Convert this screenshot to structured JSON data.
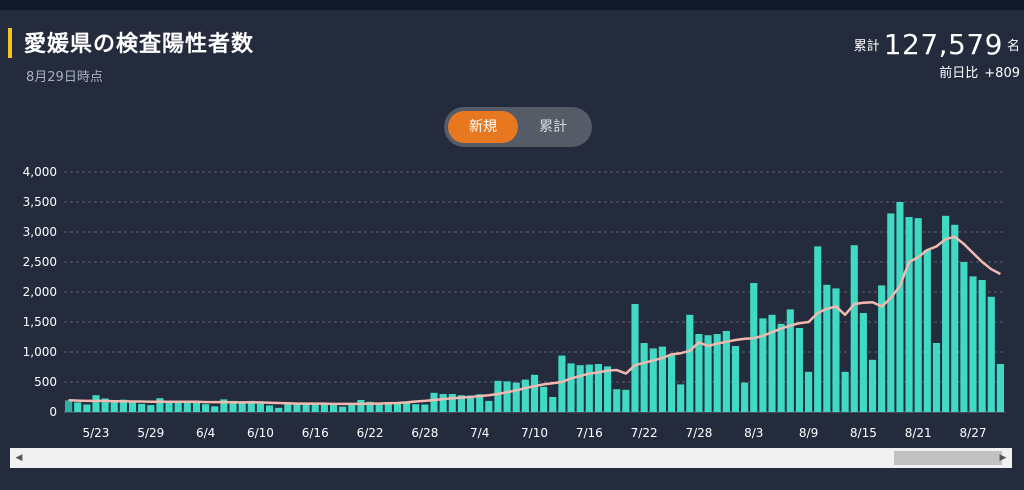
{
  "header": {
    "title": "愛媛県の検査陽性者数",
    "timestamp": "8月29日時点",
    "cumulative_label": "累計",
    "cumulative_value": "127,579",
    "cumulative_unit": "名",
    "diff_label": "前日比",
    "diff_value": "+809"
  },
  "toggle": {
    "new_label": "新規",
    "total_label": "累計"
  },
  "colors": {
    "bar": "#3fd9c4",
    "bar_first": "#2ab0a6",
    "line": "#f2b9b0",
    "accent": "#f4c51f",
    "active_button": "#e87820"
  },
  "chart_data": {
    "type": "bar",
    "title": "",
    "xlabel": "",
    "ylabel": "",
    "ylim": [
      0,
      4000
    ],
    "yticks": [
      "0",
      "500",
      "1,000",
      "1,500",
      "2,000",
      "2,500",
      "3,000",
      "3,500",
      "4,000"
    ],
    "x_tick_labels": [
      "5/23",
      "5/29",
      "6/4",
      "6/10",
      "6/16",
      "6/22",
      "6/28",
      "7/4",
      "7/10",
      "7/16",
      "7/22",
      "7/28",
      "8/3",
      "8/9",
      "8/15",
      "8/21",
      "8/27"
    ],
    "x_tick_indices": [
      3,
      9,
      15,
      21,
      27,
      33,
      39,
      45,
      51,
      57,
      63,
      69,
      75,
      81,
      87,
      93,
      99
    ],
    "grid": true,
    "series": [
      {
        "type": "bar",
        "values": [
          195,
          160,
          125,
          280,
          225,
          190,
          205,
          190,
          135,
          115,
          230,
          175,
          185,
          185,
          190,
          130,
          95,
          210,
          185,
          175,
          185,
          165,
          110,
          70,
          150,
          150,
          135,
          145,
          140,
          135,
          90,
          135,
          200,
          170,
          140,
          165,
          165,
          150,
          130,
          125,
          320,
          300,
          300,
          280,
          275,
          295,
          185,
          520,
          510,
          490,
          540,
          620,
          420,
          250,
          940,
          810,
          780,
          790,
          800,
          760,
          380,
          370,
          1800,
          1150,
          1060,
          1090,
          960,
          460,
          1620,
          1300,
          1280,
          1300,
          1350,
          1100,
          490,
          2150,
          1560,
          1620,
          1470,
          1710,
          1400,
          670,
          2760,
          2120,
          2060,
          670,
          2780,
          1650,
          870,
          2110,
          3310,
          3500,
          3250,
          3230,
          2700,
          1150,
          3270,
          3120,
          2500,
          2260,
          2200,
          1920,
          800
        ]
      },
      {
        "type": "line",
        "values": [
          195,
          190,
          185,
          185,
          185,
          180,
          180,
          175,
          175,
          170,
          170,
          170,
          170,
          170,
          170,
          165,
          165,
          165,
          160,
          160,
          160,
          160,
          155,
          150,
          145,
          140,
          140,
          140,
          140,
          135,
          135,
          135,
          135,
          140,
          140,
          145,
          150,
          160,
          175,
          185,
          200,
          215,
          230,
          240,
          250,
          265,
          280,
          300,
          330,
          360,
          400,
          430,
          460,
          480,
          500,
          560,
          600,
          640,
          660,
          690,
          700,
          640,
          780,
          820,
          860,
          900,
          960,
          980,
          1020,
          1160,
          1100,
          1140,
          1170,
          1200,
          1220,
          1230,
          1270,
          1330,
          1390,
          1440,
          1480,
          1500,
          1650,
          1720,
          1760,
          1620,
          1800,
          1820,
          1830,
          1760,
          1900,
          2100,
          2500,
          2580,
          2700,
          2760,
          2880,
          2920,
          2800,
          2650,
          2500,
          2380,
          2300
        ]
      }
    ]
  },
  "scrollbar": {
    "left_arrow": "◀",
    "right_arrow": "▶"
  }
}
